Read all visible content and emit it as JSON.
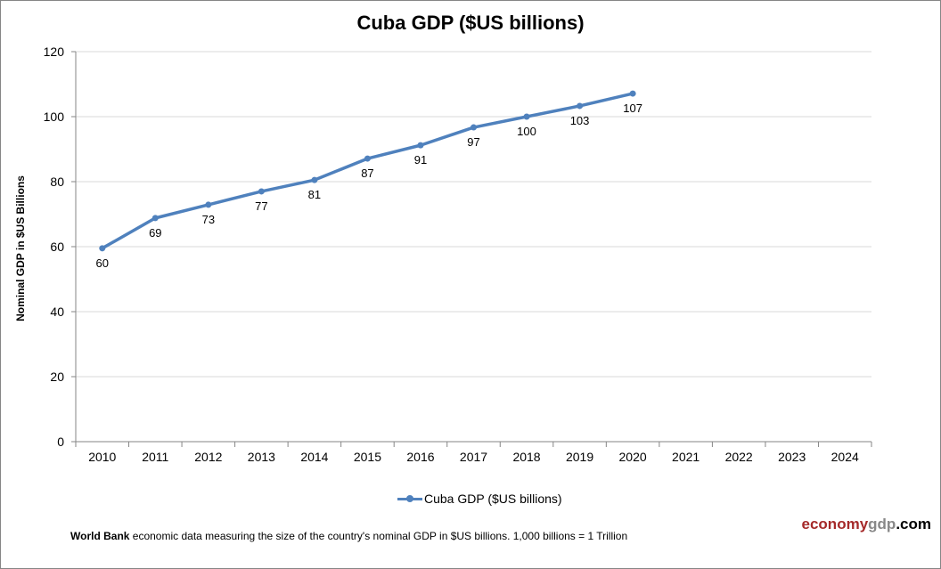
{
  "chart_data": {
    "type": "line",
    "title": "Cuba GDP ($US billions)",
    "ylabel": "Nominal GDP in $US Billions",
    "xlabel": "",
    "categories": [
      "2010",
      "2011",
      "2012",
      "2013",
      "2014",
      "2015",
      "2016",
      "2017",
      "2018",
      "2019",
      "2020",
      "2021",
      "2022",
      "2023",
      "2024"
    ],
    "series": [
      {
        "name": "Cuba GDP ($US billions)",
        "color": "#4f81bd",
        "values": [
          59.5,
          68.8,
          72.9,
          77.0,
          80.5,
          87.1,
          91.2,
          96.7,
          100.0,
          103.3,
          107.1,
          null,
          null,
          null,
          null
        ],
        "data_labels": [
          "60",
          "69",
          "73",
          "77",
          "81",
          "87",
          "91",
          "97",
          "100",
          "103",
          "107"
        ]
      }
    ],
    "ylim": [
      0,
      120
    ],
    "yticks": [
      0,
      20,
      40,
      60,
      80,
      100,
      120
    ],
    "grid": true,
    "legend_position": "bottom"
  },
  "footnote": {
    "bold": "World Bank",
    "text": " economic data  measuring the size of the country's nominal  GDP in $US billions. 1,000 billions = 1 Trillion"
  },
  "brand": {
    "part1": "economy",
    "part2": "gdp",
    "part3": ".com"
  }
}
